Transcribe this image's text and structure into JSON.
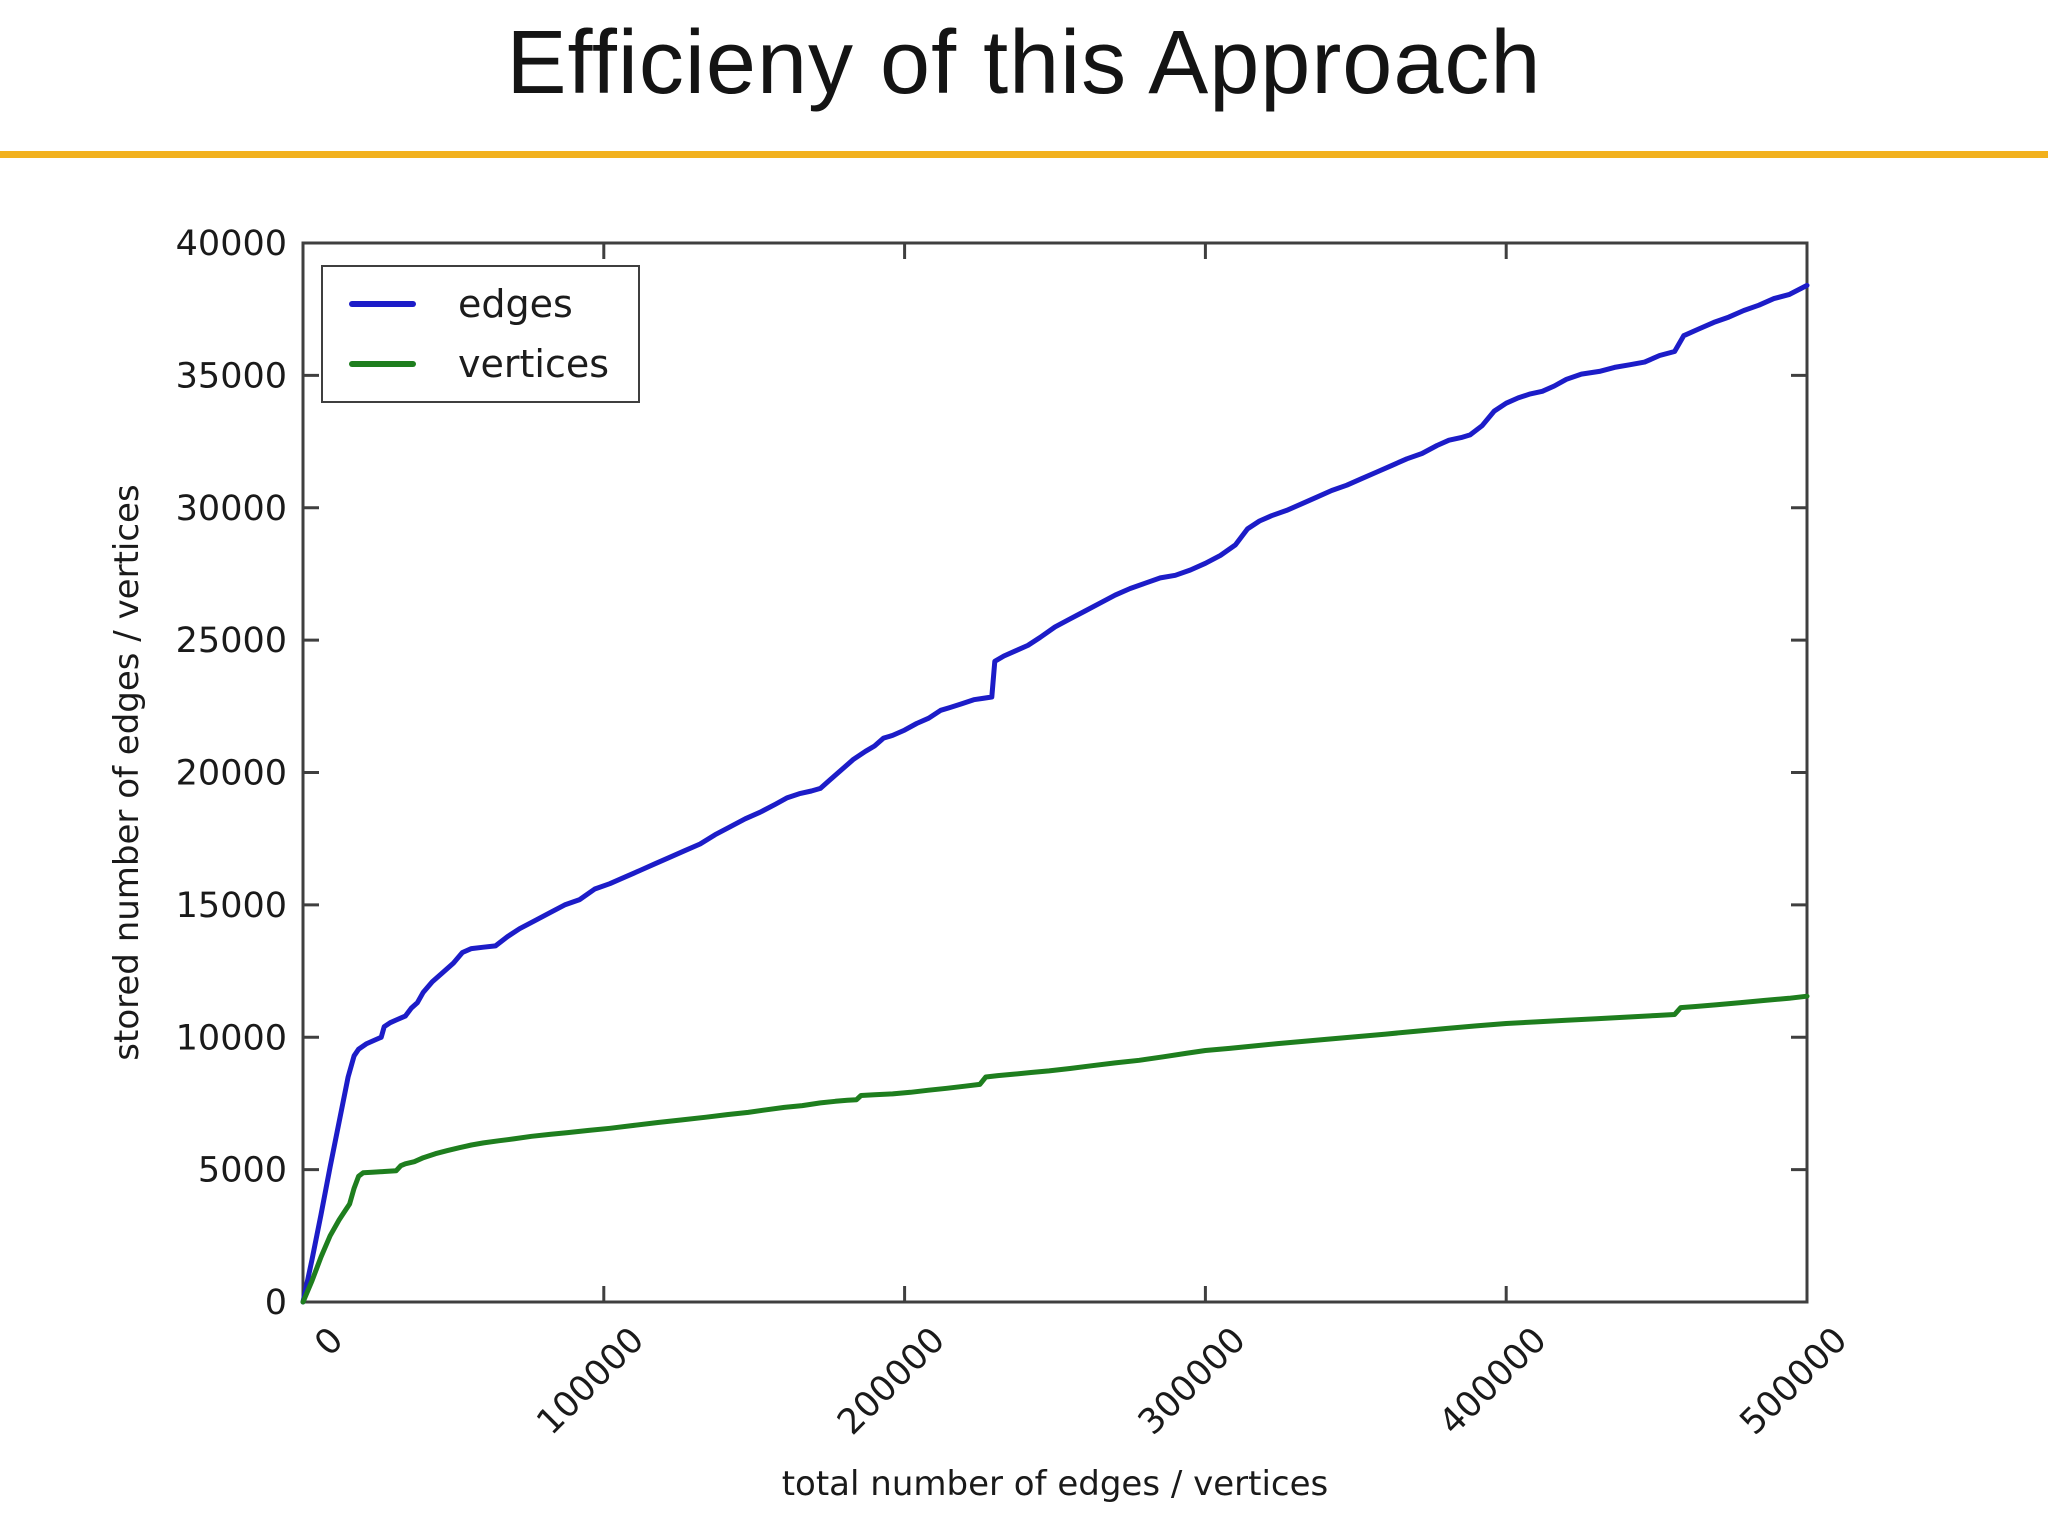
{
  "slide": {
    "title": "Efficieny of this Approach",
    "accent_color": "#F2B11E",
    "background": "#FFFFFF"
  },
  "chart_data": {
    "type": "line",
    "title": "",
    "xlabel": "total number of edges / vertices",
    "ylabel": "stored number of edges / vertices",
    "xlim": [
      0,
      500000
    ],
    "ylim": [
      0,
      40000
    ],
    "x_ticks": [
      0,
      100000,
      200000,
      300000,
      400000,
      500000
    ],
    "y_ticks": [
      0,
      5000,
      10000,
      15000,
      20000,
      25000,
      30000,
      35000,
      40000
    ],
    "grid": false,
    "legend_position": "upper-left",
    "frame_color": "#3f3f3f",
    "tick_label_color": "#1a1a1a",
    "series": [
      {
        "name": "edges",
        "color": "#1c1cc8",
        "points": [
          [
            0,
            0
          ],
          [
            3000,
            1600
          ],
          [
            6000,
            3300
          ],
          [
            9000,
            5100
          ],
          [
            12000,
            6800
          ],
          [
            15000,
            8500
          ],
          [
            17000,
            9300
          ],
          [
            18500,
            9550
          ],
          [
            21000,
            9750
          ],
          [
            24000,
            9900
          ],
          [
            26000,
            10000
          ],
          [
            27000,
            10400
          ],
          [
            29000,
            10550
          ],
          [
            31000,
            10650
          ],
          [
            34000,
            10800
          ],
          [
            36000,
            11100
          ],
          [
            38000,
            11300
          ],
          [
            40000,
            11700
          ],
          [
            43000,
            12100
          ],
          [
            46000,
            12400
          ],
          [
            50000,
            12800
          ],
          [
            53000,
            13200
          ],
          [
            56000,
            13350
          ],
          [
            60000,
            13400
          ],
          [
            64000,
            13450
          ],
          [
            68000,
            13800
          ],
          [
            72000,
            14100
          ],
          [
            77000,
            14400
          ],
          [
            82000,
            14700
          ],
          [
            87000,
            15000
          ],
          [
            92000,
            15200
          ],
          [
            97000,
            15600
          ],
          [
            102000,
            15800
          ],
          [
            107000,
            16050
          ],
          [
            112000,
            16300
          ],
          [
            117000,
            16550
          ],
          [
            122000,
            16800
          ],
          [
            127000,
            17050
          ],
          [
            132000,
            17300
          ],
          [
            137000,
            17650
          ],
          [
            142000,
            17950
          ],
          [
            147000,
            18250
          ],
          [
            152000,
            18500
          ],
          [
            157000,
            18800
          ],
          [
            161000,
            19050
          ],
          [
            165000,
            19200
          ],
          [
            169000,
            19300
          ],
          [
            172000,
            19400
          ],
          [
            175000,
            19700
          ],
          [
            179000,
            20100
          ],
          [
            183000,
            20500
          ],
          [
            187000,
            20800
          ],
          [
            190000,
            21000
          ],
          [
            193000,
            21300
          ],
          [
            196000,
            21400
          ],
          [
            200000,
            21600
          ],
          [
            204000,
            21850
          ],
          [
            208000,
            22050
          ],
          [
            212000,
            22350
          ],
          [
            215000,
            22450
          ],
          [
            219000,
            22600
          ],
          [
            223000,
            22750
          ],
          [
            226000,
            22800
          ],
          [
            229000,
            22850
          ],
          [
            230000,
            24200
          ],
          [
            233000,
            24400
          ],
          [
            237000,
            24600
          ],
          [
            241000,
            24800
          ],
          [
            245000,
            25100
          ],
          [
            250000,
            25500
          ],
          [
            255000,
            25800
          ],
          [
            260000,
            26100
          ],
          [
            265000,
            26400
          ],
          [
            270000,
            26700
          ],
          [
            275000,
            26950
          ],
          [
            280000,
            27150
          ],
          [
            285000,
            27350
          ],
          [
            290000,
            27450
          ],
          [
            295000,
            27650
          ],
          [
            300000,
            27900
          ],
          [
            305000,
            28200
          ],
          [
            310000,
            28600
          ],
          [
            314000,
            29200
          ],
          [
            318000,
            29500
          ],
          [
            322000,
            29700
          ],
          [
            327000,
            29900
          ],
          [
            332000,
            30150
          ],
          [
            337000,
            30400
          ],
          [
            342000,
            30650
          ],
          [
            347000,
            30850
          ],
          [
            352000,
            31100
          ],
          [
            357000,
            31350
          ],
          [
            362000,
            31600
          ],
          [
            367000,
            31850
          ],
          [
            372000,
            32050
          ],
          [
            377000,
            32350
          ],
          [
            381000,
            32550
          ],
          [
            385000,
            32650
          ],
          [
            388000,
            32750
          ],
          [
            392000,
            33100
          ],
          [
            396000,
            33650
          ],
          [
            400000,
            33950
          ],
          [
            404000,
            34150
          ],
          [
            408000,
            34300
          ],
          [
            412000,
            34400
          ],
          [
            416000,
            34600
          ],
          [
            420000,
            34850
          ],
          [
            425000,
            35050
          ],
          [
            431000,
            35150
          ],
          [
            436000,
            35300
          ],
          [
            441000,
            35400
          ],
          [
            446000,
            35500
          ],
          [
            451000,
            35750
          ],
          [
            456000,
            35900
          ],
          [
            459000,
            36500
          ],
          [
            464000,
            36750
          ],
          [
            469000,
            37000
          ],
          [
            474000,
            37200
          ],
          [
            479000,
            37450
          ],
          [
            484000,
            37650
          ],
          [
            489000,
            37900
          ],
          [
            494000,
            38050
          ],
          [
            500000,
            38400
          ]
        ]
      },
      {
        "name": "vertices",
        "color": "#1e7e1e",
        "points": [
          [
            0,
            0
          ],
          [
            3000,
            800
          ],
          [
            6000,
            1700
          ],
          [
            9000,
            2500
          ],
          [
            12000,
            3100
          ],
          [
            14000,
            3450
          ],
          [
            15500,
            3700
          ],
          [
            17000,
            4300
          ],
          [
            18500,
            4750
          ],
          [
            20000,
            4880
          ],
          [
            23000,
            4900
          ],
          [
            27000,
            4930
          ],
          [
            31000,
            4960
          ],
          [
            32500,
            5150
          ],
          [
            34000,
            5220
          ],
          [
            37000,
            5300
          ],
          [
            40000,
            5450
          ],
          [
            44000,
            5600
          ],
          [
            48000,
            5720
          ],
          [
            52000,
            5830
          ],
          [
            56000,
            5930
          ],
          [
            60000,
            6010
          ],
          [
            65000,
            6090
          ],
          [
            70000,
            6160
          ],
          [
            76000,
            6260
          ],
          [
            82000,
            6330
          ],
          [
            88000,
            6400
          ],
          [
            95000,
            6480
          ],
          [
            102000,
            6560
          ],
          [
            110000,
            6670
          ],
          [
            118000,
            6780
          ],
          [
            126000,
            6880
          ],
          [
            134000,
            6980
          ],
          [
            141000,
            7080
          ],
          [
            148000,
            7160
          ],
          [
            154000,
            7260
          ],
          [
            160000,
            7350
          ],
          [
            166000,
            7420
          ],
          [
            172000,
            7520
          ],
          [
            177000,
            7580
          ],
          [
            181000,
            7620
          ],
          [
            184000,
            7640
          ],
          [
            185500,
            7800
          ],
          [
            190000,
            7830
          ],
          [
            196000,
            7860
          ],
          [
            202000,
            7920
          ],
          [
            208000,
            8000
          ],
          [
            214000,
            8070
          ],
          [
            220000,
            8150
          ],
          [
            225000,
            8220
          ],
          [
            227000,
            8500
          ],
          [
            231000,
            8550
          ],
          [
            236000,
            8600
          ],
          [
            242000,
            8670
          ],
          [
            248000,
            8730
          ],
          [
            255000,
            8820
          ],
          [
            262000,
            8920
          ],
          [
            270000,
            9030
          ],
          [
            278000,
            9130
          ],
          [
            286000,
            9260
          ],
          [
            294000,
            9400
          ],
          [
            300000,
            9500
          ],
          [
            308000,
            9580
          ],
          [
            316000,
            9670
          ],
          [
            324000,
            9760
          ],
          [
            332000,
            9840
          ],
          [
            340000,
            9920
          ],
          [
            350000,
            10020
          ],
          [
            360000,
            10120
          ],
          [
            370000,
            10230
          ],
          [
            380000,
            10330
          ],
          [
            390000,
            10430
          ],
          [
            400000,
            10520
          ],
          [
            410000,
            10580
          ],
          [
            420000,
            10640
          ],
          [
            430000,
            10700
          ],
          [
            440000,
            10760
          ],
          [
            450000,
            10820
          ],
          [
            456000,
            10860
          ],
          [
            458000,
            11120
          ],
          [
            463000,
            11160
          ],
          [
            470000,
            11230
          ],
          [
            478000,
            11310
          ],
          [
            486000,
            11390
          ],
          [
            494000,
            11470
          ],
          [
            500000,
            11550
          ]
        ]
      }
    ]
  }
}
